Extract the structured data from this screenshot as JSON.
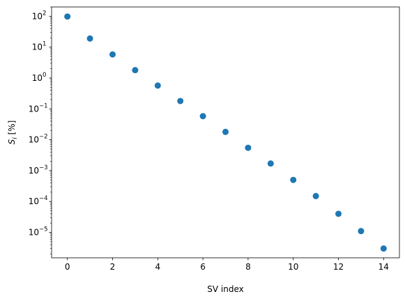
{
  "chart_data": {
    "type": "scatter",
    "title": "",
    "xlabel": "SV index",
    "ylabel": "S_i [%]",
    "ylabel_main": "S",
    "ylabel_sub": "i",
    "ylabel_rest": " [%]",
    "x_scale": "linear",
    "y_scale": "log",
    "xlim": [
      -0.7,
      14.7
    ],
    "ylim": [
      1.5e-06,
      200
    ],
    "x_ticks": [
      0,
      2,
      4,
      6,
      8,
      10,
      12,
      14
    ],
    "x_tick_labels": [
      "0",
      "2",
      "4",
      "6",
      "8",
      "10",
      "12",
      "14"
    ],
    "y_ticks_exponents": [
      -5,
      -4,
      -3,
      -2,
      -1,
      0,
      1,
      2
    ],
    "grid": false,
    "legend": "none",
    "marker_color": "#1f77b4",
    "series": [
      {
        "x": [
          0,
          1,
          2,
          3,
          4,
          5,
          6,
          7,
          8,
          9,
          10,
          11,
          12,
          13,
          14
        ],
        "y": [
          98,
          19,
          5.8,
          1.8,
          0.57,
          0.18,
          0.058,
          0.018,
          0.0055,
          0.0017,
          0.0005,
          0.00015,
          4e-05,
          1.1e-05,
          3e-06
        ]
      }
    ]
  }
}
